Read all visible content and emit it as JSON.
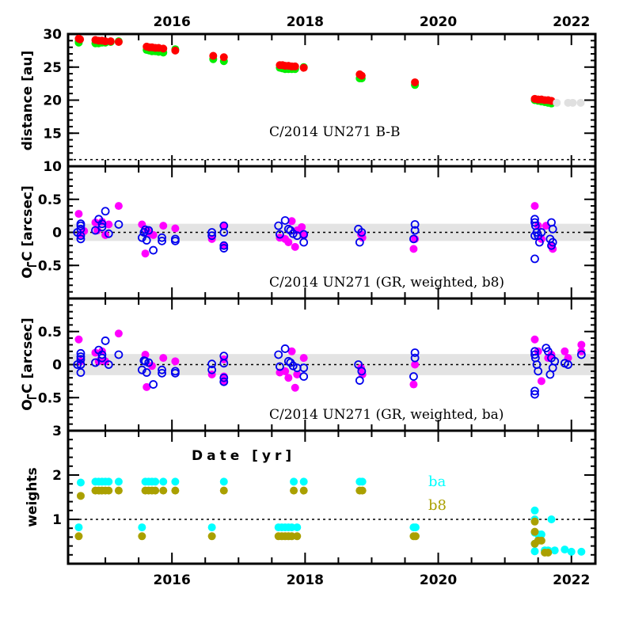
{
  "chart_data": [
    {
      "type": "scatter",
      "panel": "distance",
      "ylabel": "distance [au]",
      "xlim": [
        2014.44,
        2022.36
      ],
      "ylim": [
        10,
        30
      ],
      "yticks": [
        10,
        15,
        20,
        25,
        30
      ],
      "ytick_labels": [
        "10",
        "15",
        "20",
        "25",
        "30"
      ],
      "xtick_labels_top": [
        "2016",
        "2018",
        "2020",
        "2022"
      ],
      "reference_line": 11,
      "annotation": "C/2014 UN271 B-B",
      "series": [
        {
          "name": "heliocentric",
          "color": "#00ee00",
          "x": [
            2014.6,
            2014.6,
            2014.85,
            2014.9,
            2014.95,
            2015.0,
            2015.08,
            2015.2,
            2015.62,
            2015.66,
            2015.7,
            2015.75,
            2015.8,
            2015.87,
            2016.05,
            2016.62,
            2016.78,
            2017.62,
            2017.66,
            2017.7,
            2017.75,
            2017.8,
            2017.85,
            2017.98,
            2018.82,
            2018.85,
            2019.65,
            2021.45,
            2021.5,
            2021.55,
            2021.6,
            2021.65,
            2021.7
          ],
          "y": [
            28.9,
            28.7,
            28.6,
            28.6,
            28.7,
            28.7,
            28.8,
            28.9,
            27.6,
            27.5,
            27.4,
            27.4,
            27.3,
            27.2,
            27.7,
            26.2,
            25.9,
            24.9,
            24.8,
            24.7,
            24.7,
            24.7,
            24.7,
            25.0,
            23.3,
            23.3,
            22.3,
            20.0,
            19.9,
            19.8,
            19.7,
            19.6,
            19.5
          ]
        },
        {
          "name": "geocentric",
          "color": "#ff0000",
          "x": [
            2014.6,
            2014.62,
            2014.85,
            2014.9,
            2014.95,
            2015.0,
            2015.08,
            2015.2,
            2015.62,
            2015.66,
            2015.7,
            2015.75,
            2015.8,
            2015.87,
            2016.05,
            2016.62,
            2016.78,
            2017.62,
            2017.66,
            2017.7,
            2017.75,
            2017.8,
            2017.85,
            2017.98,
            2018.82,
            2018.85,
            2019.65,
            2021.45,
            2021.5,
            2021.55,
            2021.6,
            2021.65,
            2021.7
          ],
          "y": [
            29.3,
            29.2,
            29.1,
            29.0,
            29.0,
            28.9,
            28.9,
            28.8,
            28.1,
            28.0,
            28.0,
            27.9,
            27.9,
            27.8,
            27.5,
            26.7,
            26.5,
            25.3,
            25.3,
            25.2,
            25.2,
            25.1,
            25.1,
            24.9,
            23.9,
            23.7,
            22.7,
            20.2,
            20.1,
            20.1,
            20.0,
            20.0,
            19.9
          ]
        },
        {
          "name": "future",
          "color": "#e0e0e0",
          "x": [
            2021.78,
            2021.95,
            2022.02,
            2022.14
          ],
          "y": [
            19.6,
            19.6,
            19.6,
            19.6
          ]
        }
      ]
    },
    {
      "type": "scatter",
      "panel": "o-c-b8",
      "ylabel": "O-C [arcsec]",
      "xlim": [
        2014.44,
        2022.36
      ],
      "ylim": [
        -1,
        1
      ],
      "yticks": [
        -0.5,
        0,
        0.5
      ],
      "ytick_labels": [
        "-0.5",
        "0",
        "0.5"
      ],
      "band": [
        -0.13,
        0.13
      ],
      "reference_line": 0,
      "annotation": "C/2014 UN271 (GR, weighted, b8)",
      "series": [
        {
          "name": "RA residuals",
          "color": "#ff00ff",
          "marker": "filled",
          "x": [
            2014.6,
            2014.63,
            2014.68,
            2014.85,
            2014.88,
            2014.95,
            2015.0,
            2015.05,
            2015.2,
            2015.55,
            2015.6,
            2015.63,
            2015.67,
            2015.72,
            2015.87,
            2016.05,
            2016.6,
            2016.78,
            2016.78,
            2017.62,
            2017.7,
            2017.75,
            2017.8,
            2017.85,
            2017.88,
            2017.95,
            2017.98,
            2018.84,
            2018.86,
            2019.63,
            2019.65,
            2021.45,
            2021.5,
            2021.55,
            2021.62,
            2021.7,
            2021.72
          ],
          "y": [
            0.28,
            -0.03,
            0.02,
            0.15,
            0.03,
            0.16,
            -0.04,
            0.12,
            0.4,
            0.12,
            -0.32,
            0.03,
            -0.02,
            -0.04,
            0.1,
            0.06,
            -0.1,
            -0.2,
            0.1,
            -0.08,
            -0.1,
            -0.15,
            0.17,
            -0.22,
            0.03,
            0.08,
            -0.05,
            -0.03,
            -0.08,
            -0.25,
            -0.1,
            0.4,
            0.1,
            -0.1,
            0.1,
            -0.2,
            -0.25
          ]
        },
        {
          "name": "Dec residuals",
          "color": "#0000ee",
          "marker": "open",
          "x": [
            2014.58,
            2014.63,
            2014.63,
            2014.63,
            2014.63,
            2014.63,
            2014.85,
            2014.9,
            2014.95,
            2014.95,
            2015.0,
            2015.05,
            2015.2,
            2015.55,
            2015.58,
            2015.6,
            2015.62,
            2015.65,
            2015.72,
            2015.85,
            2015.85,
            2016.05,
            2016.05,
            2016.6,
            2016.6,
            2016.78,
            2016.78,
            2016.78,
            2016.78,
            2017.6,
            2017.62,
            2017.7,
            2017.75,
            2017.78,
            2017.82,
            2017.88,
            2017.98,
            2017.98,
            2018.8,
            2018.85,
            2018.82,
            2019.65,
            2019.65,
            2019.63,
            2021.45,
            2021.46,
            2021.48,
            2021.5,
            2021.52,
            2021.45,
            2021.45,
            2021.7,
            2021.72,
            2021.68,
            2021.72,
            2021.7,
            2021.45,
            2021.55
          ],
          "y": [
            0.0,
            0.1,
            0.05,
            0.13,
            -0.1,
            -0.05,
            0.03,
            0.2,
            0.13,
            0.08,
            0.32,
            -0.02,
            0.12,
            -0.08,
            0.0,
            0.04,
            -0.12,
            0.03,
            -0.27,
            -0.08,
            -0.13,
            -0.1,
            -0.13,
            0.0,
            -0.05,
            0.1,
            0.0,
            -0.2,
            -0.24,
            0.1,
            -0.03,
            0.18,
            0.05,
            0.03,
            -0.02,
            -0.05,
            -0.03,
            -0.15,
            0.05,
            0.0,
            -0.15,
            0.12,
            0.03,
            -0.1,
            0.2,
            0.1,
            0.0,
            -0.05,
            -0.15,
            -0.4,
            0.15,
            0.15,
            0.05,
            -0.1,
            -0.15,
            -0.2,
            -0.05,
            0.0
          ]
        }
      ]
    },
    {
      "type": "scatter",
      "panel": "o-c-ba",
      "ylabel": "O-C [arcsec]",
      "xlim": [
        2014.44,
        2022.36
      ],
      "ylim": [
        -1,
        1
      ],
      "yticks": [
        -0.5,
        0,
        0.5
      ],
      "ytick_labels": [
        "-0.5",
        "0",
        "0.5"
      ],
      "band": [
        -0.16,
        0.16
      ],
      "reference_line": 0,
      "annotation": "C/2014 UN271 (GR, weighted, ba)",
      "series": [
        {
          "name": "RA residuals",
          "color": "#ff00ff",
          "marker": "filled",
          "x": [
            2014.6,
            2014.63,
            2014.85,
            2014.9,
            2014.95,
            2015.0,
            2015.2,
            2015.6,
            2015.62,
            2015.7,
            2015.87,
            2016.05,
            2016.6,
            2016.78,
            2016.78,
            2016.78,
            2017.62,
            2017.7,
            2017.75,
            2017.8,
            2017.85,
            2017.88,
            2017.98,
            2018.84,
            2018.86,
            2019.63,
            2019.65,
            2021.45,
            2021.5,
            2021.55,
            2021.65,
            2021.7,
            2021.9,
            2021.95,
            2022.15,
            2022.15
          ],
          "y": [
            0.38,
            0.05,
            0.18,
            0.05,
            0.2,
            0.05,
            0.47,
            0.15,
            -0.34,
            -0.02,
            0.1,
            0.05,
            -0.15,
            0.08,
            -0.18,
            -0.25,
            -0.12,
            -0.1,
            -0.2,
            0.2,
            -0.35,
            -0.15,
            0.1,
            -0.05,
            -0.15,
            -0.3,
            0.0,
            0.38,
            0.2,
            -0.25,
            0.1,
            0.15,
            0.2,
            0.1,
            0.3,
            0.2
          ]
        },
        {
          "name": "Dec residuals",
          "color": "#0000ee",
          "marker": "open",
          "x": [
            2014.58,
            2014.63,
            2014.63,
            2014.63,
            2014.63,
            2014.63,
            2014.85,
            2014.9,
            2014.95,
            2014.95,
            2015.0,
            2015.05,
            2015.2,
            2015.55,
            2015.58,
            2015.6,
            2015.62,
            2015.65,
            2015.72,
            2015.85,
            2015.85,
            2016.05,
            2016.05,
            2016.6,
            2016.6,
            2016.78,
            2016.78,
            2016.78,
            2016.78,
            2017.6,
            2017.62,
            2017.7,
            2017.75,
            2017.78,
            2017.82,
            2017.88,
            2017.98,
            2017.98,
            2018.8,
            2018.85,
            2018.82,
            2019.65,
            2019.65,
            2019.63,
            2021.45,
            2021.46,
            2021.48,
            2021.5,
            2021.45,
            2021.45,
            2021.45,
            2021.62,
            2021.65,
            2021.7,
            2021.72,
            2021.68,
            2021.75,
            2021.9,
            2021.95,
            2022.15
          ],
          "y": [
            0.0,
            0.17,
            0.12,
            0.08,
            -0.12,
            0.0,
            0.03,
            0.22,
            0.15,
            0.1,
            0.36,
            0.0,
            0.15,
            -0.08,
            0.06,
            0.05,
            -0.12,
            0.03,
            -0.3,
            -0.08,
            -0.13,
            -0.1,
            -0.13,
            0.01,
            -0.08,
            0.13,
            0.02,
            -0.2,
            -0.26,
            0.15,
            -0.03,
            0.24,
            0.05,
            0.03,
            -0.02,
            -0.05,
            -0.05,
            -0.18,
            0.0,
            -0.1,
            -0.24,
            0.18,
            0.1,
            -0.18,
            0.2,
            0.1,
            0.0,
            -0.1,
            -0.4,
            -0.45,
            0.15,
            0.25,
            0.2,
            0.1,
            -0.05,
            -0.15,
            0.05,
            0.02,
            0.0,
            0.15
          ]
        }
      ]
    },
    {
      "type": "scatter",
      "panel": "weights",
      "ylabel": "weights",
      "xlabel": "Date [yr]",
      "xlim": [
        2014.44,
        2022.36
      ],
      "ylim": [
        0,
        3
      ],
      "yticks": [
        1,
        2,
        3
      ],
      "ytick_labels": [
        "1",
        "2",
        "3"
      ],
      "xtick_labels_bottom": [
        "2016",
        "2018",
        "2020",
        "2022"
      ],
      "reference_line": 1,
      "legend": [
        {
          "label": "ba",
          "color": "#00ffff"
        },
        {
          "label": "b8",
          "color": "#aaa000"
        }
      ],
      "series": [
        {
          "name": "ba",
          "color": "#00ffff",
          "x": [
            2014.6,
            2014.63,
            2014.85,
            2014.9,
            2014.95,
            2015.0,
            2015.05,
            2015.2,
            2015.55,
            2015.6,
            2015.65,
            2015.7,
            2015.75,
            2015.87,
            2016.05,
            2016.6,
            2016.78,
            2017.6,
            2017.65,
            2017.7,
            2017.75,
            2017.8,
            2017.83,
            2017.88,
            2017.98,
            2018.82,
            2018.86,
            2019.63,
            2019.66,
            2021.45,
            2021.45,
            2021.45,
            2021.45,
            2021.45,
            2021.5,
            2021.55,
            2021.6,
            2021.7,
            2021.6,
            2021.65,
            2021.75,
            2021.9,
            2022.0,
            2022.15
          ],
          "y": [
            0.82,
            1.83,
            1.85,
            1.85,
            1.85,
            1.85,
            1.85,
            1.85,
            0.82,
            1.85,
            1.85,
            1.85,
            1.85,
            1.85,
            1.85,
            0.82,
            1.85,
            0.82,
            0.82,
            0.82,
            0.82,
            0.82,
            1.85,
            0.82,
            1.85,
            1.85,
            1.85,
            0.82,
            0.82,
            1.2,
            1.0,
            0.7,
            0.45,
            0.28,
            0.66,
            0.66,
            0.3,
            1.0,
            0.3,
            0.3,
            0.3,
            0.32,
            0.27,
            0.27
          ]
        },
        {
          "name": "b8",
          "color": "#aaa000",
          "x": [
            2014.6,
            2014.63,
            2014.85,
            2014.9,
            2014.95,
            2015.0,
            2015.05,
            2015.2,
            2015.55,
            2015.6,
            2015.65,
            2015.7,
            2015.75,
            2015.87,
            2016.05,
            2016.6,
            2016.78,
            2017.6,
            2017.65,
            2017.7,
            2017.75,
            2017.8,
            2017.83,
            2017.88,
            2017.98,
            2018.82,
            2018.86,
            2019.63,
            2019.66,
            2021.45,
            2021.45,
            2021.5,
            2021.55,
            2021.6,
            2021.65,
            2021.45
          ],
          "y": [
            0.62,
            1.53,
            1.65,
            1.65,
            1.65,
            1.65,
            1.65,
            1.65,
            0.62,
            1.65,
            1.65,
            1.65,
            1.65,
            1.65,
            1.65,
            0.62,
            1.65,
            0.62,
            0.62,
            0.62,
            0.62,
            0.62,
            1.65,
            0.62,
            1.65,
            1.65,
            1.65,
            0.62,
            0.62,
            0.72,
            0.45,
            0.52,
            0.52,
            0.25,
            0.25,
            0.95
          ]
        }
      ]
    }
  ]
}
